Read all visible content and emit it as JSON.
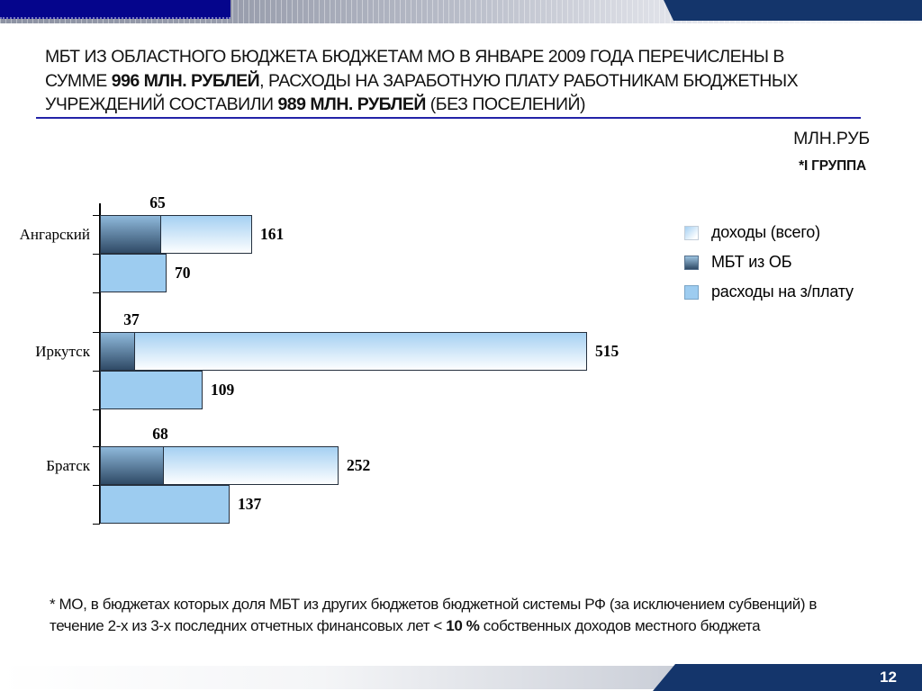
{
  "title": {
    "lines": [
      [
        {
          "t": "МБТ ИЗ ОБЛАСТНОГО БЮДЖЕТА БЮДЖЕТАМ МО В ЯНВАРЕ 2009 ГОДА ПЕРЕЧИСЛЕНЫ В"
        }
      ],
      [
        {
          "t": "СУММЕ "
        },
        {
          "t": "996 МЛН. РУБЛЕЙ",
          "b": true
        },
        {
          "t": ", РАСХОДЫ НА ЗАРАБОТНУЮ ПЛАТУ РАБОТНИКАМ БЮДЖЕТНЫХ"
        }
      ],
      [
        {
          "t": "УЧРЕЖДЕНИЙ СОСТАВИЛИ "
        },
        {
          "t": "989 МЛН. РУБЛЕЙ",
          "b": true
        },
        {
          "t": " (БЕЗ ПОСЕЛЕНИЙ)"
        }
      ]
    ]
  },
  "chart_data": {
    "type": "bar",
    "orientation": "horizontal",
    "unit_label": "МЛН.РУБ",
    "group_note": "*I ГРУППА",
    "categories": [
      "Ангарский",
      "Иркутск",
      "Братск"
    ],
    "series": [
      {
        "name": "доходы (всего)",
        "values": [
          161,
          515,
          252
        ]
      },
      {
        "name": "МБТ из ОБ",
        "values": [
          65,
          37,
          68
        ]
      },
      {
        "name": "расходы на з/плату",
        "values": [
          70,
          109,
          137
        ]
      }
    ],
    "xlim": [
      0,
      515
    ],
    "grid": false,
    "legend_position": "right",
    "value_labels": true
  },
  "footnote": {
    "lines": [
      [
        {
          "t": "* МО, в бюджетах которых доля МБТ из других бюджетов бюджетной системы РФ (за исключением субвенций) в"
        }
      ],
      [
        {
          "t": "течение 2-х из 3-х последних отчетных финансовых лет < "
        },
        {
          "t": "10 %",
          "b": true
        },
        {
          "t": " собственных доходов местного бюджета"
        }
      ]
    ]
  },
  "footer": {
    "page_number": "12"
  },
  "colors": {
    "accent_navy_left": "#05058C",
    "accent_navy_right": "#14356B",
    "title_rule": "#2323A8",
    "bar_income_top": "#A5D0F2",
    "bar_income_bottom": "#FDFEFF",
    "bar_mbt_top": "#8FB9DB",
    "bar_mbt_bottom": "#2F4A66",
    "bar_salary": "#9DCCF0",
    "bar_border": "#25303E"
  }
}
